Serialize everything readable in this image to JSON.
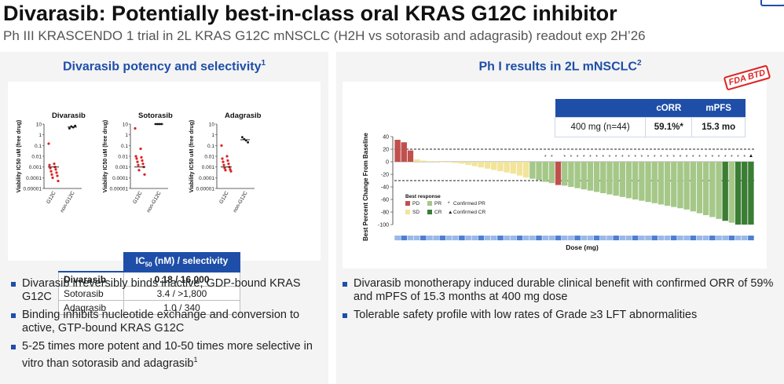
{
  "header": {
    "title": "Divarasib: Potentially best-in-class oral KRAS G12C inhibitor",
    "subtitle": "Ph III KRASCENDO 1 trial in 2L KRAS G12C mNSCLC (H2H vs sotorasib and adagrasib) readout exp 2H’26"
  },
  "left_panel": {
    "heading": "Divarasib potency and selectivity",
    "heading_sup": "1",
    "bullets": [
      {
        "text": "Divarasib irreversibly binds inactive, GDP-bound KRAS G12C"
      },
      {
        "text": "Binding inhibits nucleotide exchange and conversion to active, GTP-bound KRAS G12C"
      },
      {
        "text": "5-25 times more potent and 10-50 times more selective in vitro than sotorasib and adagrasib",
        "sup": "1"
      }
    ],
    "ic50_table": {
      "header_main": "IC",
      "header_sub": "50",
      "header_rest": " (nM) / selectivity",
      "rows": [
        {
          "name": "Divarasib",
          "value": "0.18 / 16,000"
        },
        {
          "name": "Sotorasib",
          "value": "3.4 / >1,800"
        },
        {
          "name": "Adagrasib",
          "value": "1.0 / 340"
        }
      ]
    }
  },
  "right_panel": {
    "heading": "Ph I results in 2L mNSCLC",
    "heading_sup": "2",
    "stamp": "FDA BTD",
    "orr_table": {
      "headers": [
        "",
        "cORR",
        "mPFS"
      ],
      "row": [
        "400 mg (n=44)",
        "59.1%*",
        "15.3 mo"
      ]
    },
    "bullets": [
      {
        "text": "Divarasib monotherapy induced durable clinical benefit with confirmed ORR of 59% and mPFS of 15.3 months at 400 mg dose"
      },
      {
        "text": "Tolerable safety profile with low rates of Grade ≥3 LFT abnormalities"
      }
    ]
  },
  "chart_data": [
    {
      "type": "scatter",
      "title": "Divarasib",
      "ylabel": "Viability IC50 uM (free drug)",
      "yscale": "log",
      "ylim": [
        1e-05,
        10
      ],
      "yticks": [
        "10",
        "1",
        "0.1",
        "0.01",
        "0.001",
        "0.0001",
        "0.00001"
      ],
      "categories": [
        "G12C",
        "non-G12C"
      ],
      "series": [
        {
          "values": [
            0.15,
            0.002,
            0.0015,
            0.001,
            0.0008,
            0.0006,
            0.0004,
            0.0003,
            0.0002,
            0.00015,
            0.0001,
            5e-05
          ]
        },
        {
          "values": [
            4,
            6,
            5,
            7
          ]
        }
      ]
    },
    {
      "type": "scatter",
      "title": "Sotorasib",
      "ylabel": "Viability IC50 uM (free drug)",
      "yscale": "log",
      "ylim": [
        1e-05,
        10
      ],
      "yticks": [
        "10",
        "1",
        "0.1",
        "0.01",
        "0.001",
        "0.0001",
        "0.00001"
      ],
      "categories": [
        "G12C",
        "non-G12C"
      ],
      "series": [
        {
          "values": [
            4,
            0.05,
            0.01,
            0.008,
            0.006,
            0.004,
            0.003,
            0.002,
            0.0015,
            0.001,
            0.0005,
            0.0002
          ]
        },
        {
          "values": [
            10,
            10,
            10,
            10
          ]
        }
      ]
    },
    {
      "type": "scatter",
      "title": "Adagrasib",
      "ylabel": "Viability IC50 uM (free drug)",
      "yscale": "log",
      "ylim": [
        1e-05,
        10
      ],
      "yticks": [
        "10",
        "1",
        "0.1",
        "0.01",
        "0.001",
        "0.0001",
        "0.00001"
      ],
      "categories": [
        "G12C",
        "non-G12C"
      ],
      "series": [
        {
          "values": [
            0.1,
            0.01,
            0.006,
            0.004,
            0.003,
            0.002,
            0.0015,
            0.001,
            0.0008,
            0.0006,
            0.0005,
            0.0004
          ]
        },
        {
          "values": [
            0.6,
            0.4,
            0.3,
            0.2
          ]
        }
      ]
    },
    {
      "type": "bar",
      "title": "",
      "xlabel": "Dose (mg)",
      "ylabel": "Best Percent Change From Baseline",
      "ylim": [
        -110,
        40
      ],
      "yticks": [
        40,
        20,
        0,
        -20,
        -40,
        -60,
        -80,
        -100
      ],
      "reference_lines": [
        20,
        -30
      ],
      "legend_title": "Best response",
      "legend": [
        {
          "code": "PD",
          "color": "#c0504d"
        },
        {
          "code": "SD",
          "color": "#f2e49a"
        },
        {
          "code": "PR",
          "color": "#a5c889"
        },
        {
          "code": "CR",
          "color": "#3a7d35"
        },
        {
          "code": "confirmed_pr",
          "label": "Confirmed PR",
          "marker": "*"
        },
        {
          "code": "confirmed_cr",
          "label": "Confirmed CR",
          "marker": "▲"
        }
      ],
      "series": [
        {
          "name": "Best percent change",
          "values": [
            35,
            31,
            18,
            4,
            2,
            1,
            1,
            0,
            -1,
            -2,
            -3,
            -5,
            -7,
            -9,
            -11,
            -13,
            -15,
            -17,
            -19,
            -22,
            -25,
            -27,
            -29,
            -32,
            -34,
            -37,
            -38,
            -40,
            -42,
            -44,
            -46,
            -48,
            -50,
            -52,
            -54,
            -56,
            -58,
            -60,
            -62,
            -64,
            -66,
            -68,
            -70,
            -72,
            -74,
            -76,
            -79,
            -82,
            -85,
            -88,
            -91,
            -94,
            -97,
            -100,
            -100,
            -100
          ],
          "response": [
            "PD",
            "PD",
            "PD",
            "SD",
            "SD",
            "SD",
            "SD",
            "SD",
            "SD",
            "SD",
            "SD",
            "SD",
            "SD",
            "SD",
            "SD",
            "SD",
            "SD",
            "SD",
            "SD",
            "SD",
            "SD",
            "PR",
            "PR",
            "PR",
            "PR",
            "PD",
            "PR",
            "PR",
            "PR",
            "PR",
            "PR",
            "PR",
            "PR",
            "PR",
            "PR",
            "PR",
            "PR",
            "PR",
            "PR",
            "PR",
            "PR",
            "PR",
            "PR",
            "PR",
            "PR",
            "PR",
            "PR",
            "PR",
            "PR",
            "PR",
            "PR",
            "CR",
            "PR",
            "CR",
            "CR",
            "CR"
          ]
        }
      ]
    }
  ]
}
